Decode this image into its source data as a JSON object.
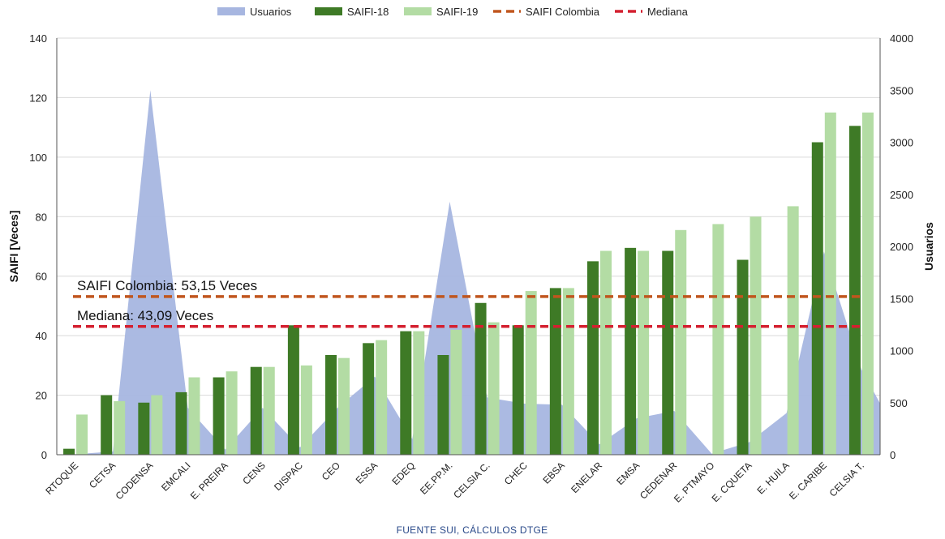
{
  "chart_data": {
    "type": "bar",
    "categories": [
      "RTOQUE",
      "CETSA",
      "CODENSA",
      "EMCALI",
      "E. PREIRA",
      "CENS",
      "DISPAC",
      "CEO",
      "ESSA",
      "EDEQ",
      "EE.PP.M.",
      "CELSIA C.",
      "CHEC",
      "EBSA",
      "ENELAR",
      "EMSA",
      "CEDENAR",
      "E. PTMAYO",
      "E. CQUETA",
      "E. HUILA",
      "E. CARIBE",
      "CELSIA T."
    ],
    "series": [
      {
        "name": "Usuarios",
        "kind": "area",
        "axis": "right",
        "color": "#a7b6e0",
        "values": [
          5,
          30,
          3500,
          450,
          50,
          450,
          70,
          450,
          750,
          150,
          2430,
          550,
          490,
          480,
          100,
          350,
          420,
          10,
          120,
          400,
          1950,
          820
        ]
      },
      {
        "name": "SAIFI-18",
        "kind": "bar",
        "axis": "left",
        "color": "#3e7a26",
        "values": [
          2,
          20,
          17.5,
          21,
          26,
          29.5,
          43.5,
          33.5,
          37.5,
          41.5,
          33.5,
          51,
          43.5,
          56,
          65,
          69.5,
          68.5,
          0,
          65.5,
          0,
          105,
          110.5
        ]
      },
      {
        "name": "SAIFI-19",
        "kind": "bar",
        "axis": "left",
        "color": "#b3dca4",
        "values": [
          13.5,
          18,
          20,
          26,
          28,
          29.5,
          30,
          32.5,
          38.5,
          41.5,
          42,
          44.5,
          55,
          56,
          68.5,
          68.5,
          75.5,
          77.5,
          80,
          83.5,
          115,
          115
        ]
      }
    ],
    "reference_lines": [
      {
        "name": "SAIFI Colombia",
        "value": 53.15,
        "color": "#c0561e",
        "label": "SAIFI Colombia: 53,15 Veces"
      },
      {
        "name": "Mediana",
        "value": 43.09,
        "color": "#d42030",
        "label": "Mediana: 43,09 Veces"
      }
    ],
    "ylabel": "SAIFI [Veces]",
    "y2label": "Usuarios",
    "ylim": [
      0,
      140
    ],
    "y2lim": [
      0,
      4000
    ],
    "yticks": [
      0,
      20,
      40,
      60,
      80,
      100,
      120,
      140
    ],
    "y2ticks": [
      0,
      500,
      1000,
      1500,
      2000,
      2500,
      3000,
      3500,
      4000
    ],
    "grid": true,
    "legend_position": "top-center",
    "source": "FUENTE SUI, CÁLCULOS DTGE"
  }
}
